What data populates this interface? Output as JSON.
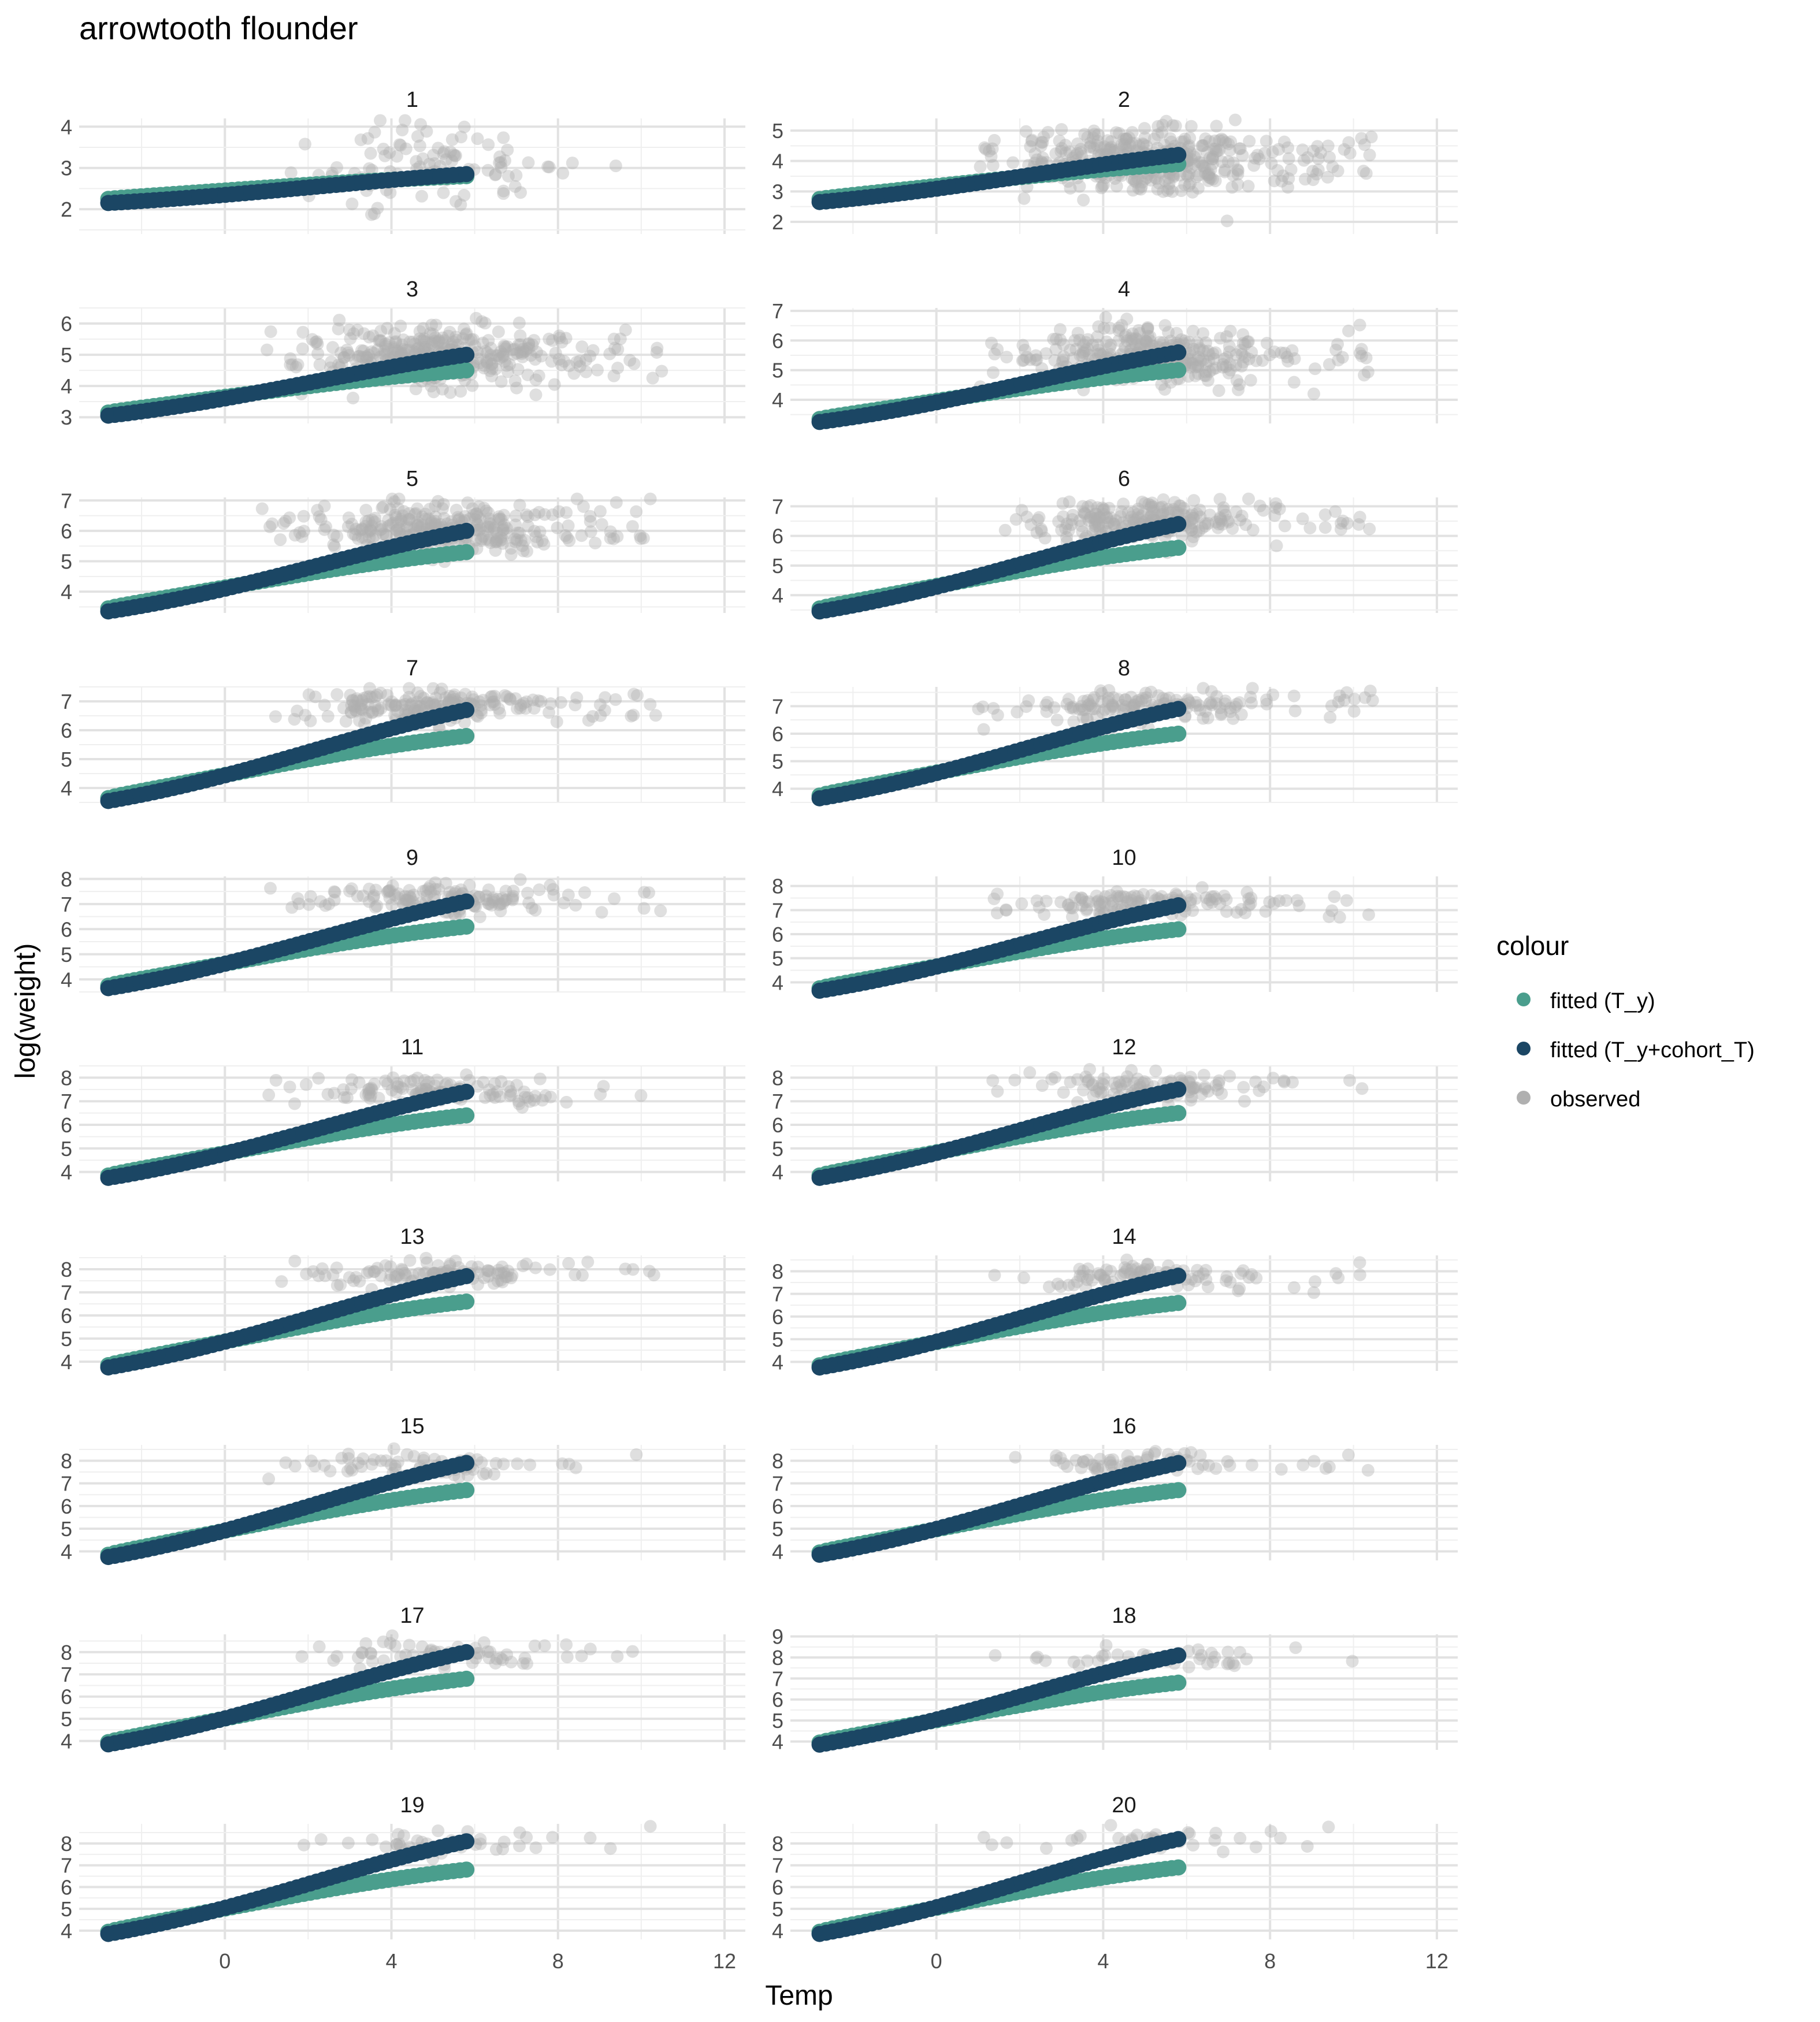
{
  "chart_data": {
    "type": "scatter",
    "title": "arrowtooth flounder",
    "xlabel": "Temp",
    "ylabel": "log(weight)",
    "xlim": [
      -3.5,
      12.5
    ],
    "x_ticks": [
      0,
      4,
      8,
      12
    ],
    "grid": true,
    "legend": {
      "title": "colour",
      "position": "right",
      "entries": [
        {
          "label": "fitted (T_y)",
          "color": "#4a9e8d"
        },
        {
          "label": "fitted (T_y+cohort_T)",
          "color": "#1b4664"
        },
        {
          "label": "observed",
          "color": "#b0b0b0"
        }
      ]
    },
    "colors": {
      "fitted_Ty": "#4a9e8d",
      "fitted_cohort": "#1b4664",
      "observed": "#b0b0b0"
    },
    "panels": [
      {
        "label": "1",
        "ylim": [
          1.4,
          4.2
        ],
        "yticks": [
          2,
          3,
          4
        ],
        "fit_start": 2.2,
        "fit_Ty_end": 2.8,
        "fit_cohort_end": 2.85,
        "obs_center": 3.0,
        "obs_spread": 0.7,
        "obs_n": 100
      },
      {
        "label": "2",
        "ylim": [
          1.6,
          5.4
        ],
        "yticks": [
          2,
          3,
          4,
          5
        ],
        "fit_start": 2.7,
        "fit_Ty_end": 3.9,
        "fit_cohort_end": 4.2,
        "obs_center": 4.0,
        "obs_spread": 0.7,
        "obs_n": 420
      },
      {
        "label": "3",
        "ylim": [
          2.8,
          6.5
        ],
        "yticks": [
          3,
          4,
          5,
          6
        ],
        "fit_start": 3.1,
        "fit_Ty_end": 4.5,
        "fit_cohort_end": 5.0,
        "obs_center": 5.0,
        "obs_spread": 0.7,
        "obs_n": 360
      },
      {
        "label": "4",
        "ylim": [
          3.2,
          7.1
        ],
        "yticks": [
          4,
          5,
          6,
          7
        ],
        "fit_start": 3.3,
        "fit_Ty_end": 5.0,
        "fit_cohort_end": 5.6,
        "obs_center": 5.5,
        "obs_spread": 0.7,
        "obs_n": 330
      },
      {
        "label": "5",
        "ylim": [
          3.3,
          7.1
        ],
        "yticks": [
          4,
          5,
          6,
          7
        ],
        "fit_start": 3.4,
        "fit_Ty_end": 5.3,
        "fit_cohort_end": 6.0,
        "obs_center": 6.1,
        "obs_spread": 0.6,
        "obs_n": 300
      },
      {
        "label": "6",
        "ylim": [
          3.4,
          7.3
        ],
        "yticks": [
          4,
          5,
          6,
          7
        ],
        "fit_start": 3.5,
        "fit_Ty_end": 5.6,
        "fit_cohort_end": 6.4,
        "obs_center": 6.5,
        "obs_spread": 0.5,
        "obs_n": 240
      },
      {
        "label": "7",
        "ylim": [
          3.5,
          7.5
        ],
        "yticks": [
          4,
          5,
          6,
          7
        ],
        "fit_start": 3.6,
        "fit_Ty_end": 5.8,
        "fit_cohort_end": 6.7,
        "obs_center": 6.8,
        "obs_spread": 0.4,
        "obs_n": 200
      },
      {
        "label": "8",
        "ylim": [
          3.5,
          7.7
        ],
        "yticks": [
          4,
          5,
          6,
          7
        ],
        "fit_start": 3.7,
        "fit_Ty_end": 6.0,
        "fit_cohort_end": 6.9,
        "obs_center": 7.0,
        "obs_spread": 0.4,
        "obs_n": 150
      },
      {
        "label": "9",
        "ylim": [
          3.5,
          8.1
        ],
        "yticks": [
          4,
          5,
          6,
          7,
          8
        ],
        "fit_start": 3.7,
        "fit_Ty_end": 6.1,
        "fit_cohort_end": 7.1,
        "obs_center": 7.2,
        "obs_spread": 0.4,
        "obs_n": 150
      },
      {
        "label": "10",
        "ylim": [
          3.6,
          8.4
        ],
        "yticks": [
          4,
          5,
          6,
          7,
          8
        ],
        "fit_start": 3.7,
        "fit_Ty_end": 6.2,
        "fit_cohort_end": 7.2,
        "obs_center": 7.3,
        "obs_spread": 0.4,
        "obs_n": 130
      },
      {
        "label": "11",
        "ylim": [
          3.6,
          8.5
        ],
        "yticks": [
          4,
          5,
          6,
          7,
          8
        ],
        "fit_start": 3.8,
        "fit_Ty_end": 6.4,
        "fit_cohort_end": 7.4,
        "obs_center": 7.5,
        "obs_spread": 0.4,
        "obs_n": 120
      },
      {
        "label": "12",
        "ylim": [
          3.6,
          8.5
        ],
        "yticks": [
          4,
          5,
          6,
          7,
          8
        ],
        "fit_start": 3.8,
        "fit_Ty_end": 6.5,
        "fit_cohort_end": 7.5,
        "obs_center": 7.6,
        "obs_spread": 0.4,
        "obs_n": 110
      },
      {
        "label": "13",
        "ylim": [
          3.6,
          8.6
        ],
        "yticks": [
          4,
          5,
          6,
          7,
          8
        ],
        "fit_start": 3.8,
        "fit_Ty_end": 6.6,
        "fit_cohort_end": 7.7,
        "obs_center": 7.8,
        "obs_spread": 0.4,
        "obs_n": 110
      },
      {
        "label": "14",
        "ylim": [
          3.6,
          8.7
        ],
        "yticks": [
          4,
          5,
          6,
          7,
          8
        ],
        "fit_start": 3.8,
        "fit_Ty_end": 6.6,
        "fit_cohort_end": 7.8,
        "obs_center": 7.8,
        "obs_spread": 0.4,
        "obs_n": 90
      },
      {
        "label": "15",
        "ylim": [
          3.6,
          8.7
        ],
        "yticks": [
          4,
          5,
          6,
          7,
          8
        ],
        "fit_start": 3.8,
        "fit_Ty_end": 6.7,
        "fit_cohort_end": 7.9,
        "obs_center": 7.8,
        "obs_spread": 0.4,
        "obs_n": 70
      },
      {
        "label": "16",
        "ylim": [
          3.6,
          8.7
        ],
        "yticks": [
          4,
          5,
          6,
          7,
          8
        ],
        "fit_start": 3.9,
        "fit_Ty_end": 6.7,
        "fit_cohort_end": 7.9,
        "obs_center": 7.9,
        "obs_spread": 0.4,
        "obs_n": 70
      },
      {
        "label": "17",
        "ylim": [
          3.6,
          8.8
        ],
        "yticks": [
          4,
          5,
          6,
          7,
          8
        ],
        "fit_start": 3.9,
        "fit_Ty_end": 6.8,
        "fit_cohort_end": 8.0,
        "obs_center": 8.0,
        "obs_spread": 0.4,
        "obs_n": 60
      },
      {
        "label": "18",
        "ylim": [
          3.6,
          9.1
        ],
        "yticks": [
          4,
          5,
          6,
          7,
          8,
          9
        ],
        "fit_start": 3.9,
        "fit_Ty_end": 6.8,
        "fit_cohort_end": 8.1,
        "obs_center": 8.0,
        "obs_spread": 0.4,
        "obs_n": 40
      },
      {
        "label": "19",
        "ylim": [
          3.6,
          8.9
        ],
        "yticks": [
          4,
          5,
          6,
          7,
          8
        ],
        "fit_start": 3.9,
        "fit_Ty_end": 6.8,
        "fit_cohort_end": 8.1,
        "obs_center": 8.0,
        "obs_spread": 0.4,
        "obs_n": 40
      },
      {
        "label": "20",
        "ylim": [
          3.6,
          8.9
        ],
        "yticks": [
          4,
          5,
          6,
          7,
          8
        ],
        "fit_start": 3.9,
        "fit_Ty_end": 6.9,
        "fit_cohort_end": 8.2,
        "obs_center": 8.2,
        "obs_spread": 0.4,
        "obs_n": 35
      }
    ]
  }
}
